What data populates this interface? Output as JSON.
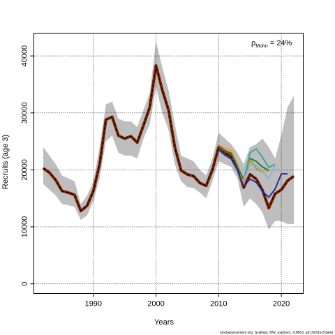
{
  "chart_data": {
    "type": "line",
    "xlabel": "Years",
    "ylabel": "Recruits (age 3)",
    "xlim": [
      1980.5,
      2023.5
    ],
    "ylim": [
      -1700,
      44000
    ],
    "x_ticks": [
      1990,
      2000,
      2010,
      2020
    ],
    "y_ticks": [
      0,
      10000,
      20000,
      30000,
      40000
    ],
    "grid": true,
    "annotation": {
      "symbol": "ρ",
      "subscript": "Mohn",
      "text": " = 24%"
    },
    "footer": "stockassessment.org, Scallops_NW_explore1, r18603, git:c9c81ec53a0d",
    "colors": {
      "band": "#bebebe",
      "base_line": "#000000",
      "base_outline": "#7a2200",
      "retro_2021": "#2d2b9e",
      "retro_2019": "#3aa6a0",
      "retro_2018_black": "#000000"
    },
    "confidence_band": {
      "x": [
        1982,
        1983,
        1984,
        1985,
        1986,
        1987,
        1988,
        1989,
        1990,
        1991,
        1992,
        1993,
        1994,
        1995,
        1996,
        1997,
        1998,
        1999,
        2000,
        2001,
        2002,
        2003,
        2004,
        2005,
        2006,
        2007,
        2008,
        2009,
        2010,
        2011,
        2012,
        2013,
        2014,
        2015,
        2016,
        2017,
        2018,
        2019,
        2020,
        2021,
        2022
      ],
      "upper": [
        24000,
        22500,
        21000,
        19000,
        18500,
        18000,
        14000,
        15500,
        18000,
        24000,
        31500,
        32000,
        29000,
        28500,
        28500,
        27500,
        30500,
        33500,
        42500,
        38000,
        34000,
        28000,
        22500,
        22000,
        21500,
        20000,
        19000,
        22000,
        26500,
        25500,
        24500,
        23000,
        21000,
        24000,
        24500,
        25500,
        24000,
        22000,
        26000,
        31000,
        33000
      ],
      "lower": [
        17500,
        16500,
        15500,
        14000,
        13800,
        13500,
        11200,
        12000,
        14500,
        18500,
        25000,
        26000,
        23000,
        22500,
        22500,
        22000,
        25500,
        28000,
        34500,
        30000,
        27000,
        21000,
        18000,
        17000,
        16800,
        16000,
        15000,
        18000,
        21500,
        21000,
        20500,
        18500,
        13500,
        15000,
        14000,
        12500,
        9500,
        11000,
        11000,
        10500,
        10500
      ]
    },
    "series": [
      {
        "name": "",
        "color": "#000000",
        "x": [
          1982,
          1983,
          1984,
          1985,
          1986,
          1987,
          1988,
          1989,
          1990,
          1991,
          1992,
          1993,
          1994,
          1995,
          1996,
          1997,
          1998,
          1999,
          2000,
          2001,
          2002,
          2003,
          2004,
          2005,
          2006,
          2007,
          2008,
          2009,
          2010,
          2011,
          2012,
          2013,
          2014,
          2015,
          2016,
          2017,
          2018,
          2019,
          2020,
          2021,
          2022
        ],
        "y": [
          20300,
          19500,
          18200,
          16300,
          16000,
          15600,
          12800,
          13700,
          16300,
          21000,
          28800,
          29300,
          26000,
          25500,
          25900,
          24800,
          27800,
          31000,
          38300,
          34000,
          30500,
          24000,
          19900,
          19200,
          18900,
          17700,
          17200,
          20000,
          24000,
          23000,
          22300,
          20400,
          16900,
          19200,
          18400,
          16400,
          13300,
          15800,
          16500,
          18100,
          18900
        ]
      },
      {
        "name": "",
        "color": "#e8a020",
        "x": [
          2010,
          2011,
          2012,
          2013,
          2014,
          2015,
          2016,
          2017,
          2018
        ],
        "y": [
          24300,
          23800,
          23400,
          21000,
          17500,
          21500,
          20700,
          19900,
          19700
        ]
      },
      {
        "name": "",
        "color": "#b03020",
        "x": [
          2010,
          2011,
          2012,
          2013
        ],
        "y": [
          24200,
          23400,
          22900,
          20600
        ]
      },
      {
        "name": "",
        "color": "#1e7a3a",
        "x": [
          2010,
          2011,
          2012,
          2013,
          2014,
          2015,
          2016,
          2017,
          2018
        ],
        "y": [
          24000,
          23200,
          22800,
          20500,
          18300,
          22000,
          21500,
          20500,
          19900
        ]
      },
      {
        "name": "",
        "color": "#2d2b9e",
        "x": [
          2010,
          2011,
          2012,
          2013,
          2014,
          2015,
          2016,
          2017,
          2018,
          2019,
          2020,
          2021
        ],
        "y": [
          23500,
          22600,
          21900,
          19900,
          17100,
          18400,
          17800,
          16200,
          15200,
          16600,
          19300,
          19300
        ]
      },
      {
        "name": "",
        "color": "#9aa03a",
        "x": [
          2014,
          2015,
          2016,
          2017
        ],
        "y": [
          18500,
          21800,
          20200,
          19600
        ]
      },
      {
        "name": "",
        "color": "#3aa6a0",
        "x": [
          2014,
          2015,
          2016,
          2017,
          2018,
          2019
        ],
        "y": [
          18000,
          23000,
          23700,
          22200,
          20400,
          21000
        ]
      },
      {
        "name": "",
        "color": "#8fb0d8",
        "x": [
          2014,
          2015,
          2016,
          2017,
          2018,
          2019
        ],
        "y": [
          18200,
          20800,
          20900,
          19700,
          18500,
          20700
        ]
      }
    ]
  }
}
